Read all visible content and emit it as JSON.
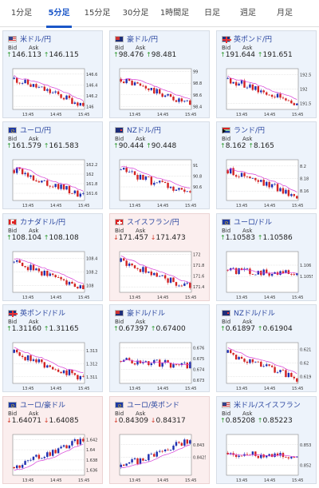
{
  "tabs": [
    {
      "label": "1分足",
      "active": false
    },
    {
      "label": "5分足",
      "active": true
    },
    {
      "label": "15分足",
      "active": false
    },
    {
      "label": "30分足",
      "active": false
    },
    {
      "label": "1時間足",
      "active": false
    },
    {
      "label": "日足",
      "active": false
    },
    {
      "label": "週足",
      "active": false
    },
    {
      "label": "月足",
      "active": false
    }
  ],
  "bid_label": "Bid",
  "ask_label": "Ask",
  "colors": {
    "up_bg": "#edf3fb",
    "down_bg": "#fbeeee",
    "up_arrow": "#2e9a2e",
    "down_arrow": "#d23a2a",
    "ma_line": "#d63cd6",
    "candle_up": "#1e2fb0",
    "candle_down": "#d32222"
  },
  "pairs": [
    {
      "name": "米ドル/円",
      "flag": "us-flag-icon",
      "direction": "up",
      "bid": "146.113",
      "ask": "146.115",
      "chart": {
        "x_ticks": [
          "13:45",
          "14:45",
          "15:45"
        ],
        "y_ticks": [
          "146.6",
          "146.4",
          "146.2",
          "146"
        ],
        "ylim": [
          145.95,
          146.7
        ],
        "trend": "down"
      }
    },
    {
      "name": "豪ドル/円",
      "flag": "au-flag-icon",
      "direction": "up",
      "bid": "98.476",
      "ask": "98.481",
      "chart": {
        "x_ticks": [
          "13:45",
          "14:45",
          "15:45"
        ],
        "y_ticks": [
          "99",
          "98.8",
          "98.6",
          "98.4"
        ],
        "ylim": [
          98.35,
          99.05
        ],
        "trend": "down"
      }
    },
    {
      "name": "英ポンド/円",
      "flag": "gb-flag-icon",
      "direction": "up",
      "bid": "191.644",
      "ask": "191.651",
      "chart": {
        "x_ticks": [
          "13:45",
          "14:45",
          "15:45"
        ],
        "y_ticks": [
          "192.5",
          "192",
          "191.5"
        ],
        "ylim": [
          191.3,
          192.7
        ],
        "trend": "down"
      }
    },
    {
      "name": "ユーロ/円",
      "flag": "eu-flag-icon",
      "direction": "up",
      "bid": "161.579",
      "ask": "161.583",
      "chart": {
        "x_ticks": [
          "13:45",
          "14:45",
          "15:45"
        ],
        "y_ticks": [
          "162.2",
          "162",
          "161.8",
          "161.6"
        ],
        "ylim": [
          161.45,
          162.3
        ],
        "trend": "down"
      }
    },
    {
      "name": "NZドル/円",
      "flag": "nz-flag-icon",
      "direction": "up",
      "bid": "90.444",
      "ask": "90.448",
      "chart": {
        "x_ticks": [
          "13:45",
          "14:45",
          "15:45"
        ],
        "y_ticks": [
          "91",
          "90.8",
          "90.6"
        ],
        "ylim": [
          90.35,
          91.1
        ],
        "trend": "down"
      }
    },
    {
      "name": "ランド/円",
      "flag": "za-flag-icon",
      "direction": "up",
      "bid": "8.162",
      "ask": "8.165",
      "chart": {
        "x_ticks": [
          "13:45",
          "14:45",
          "15:45"
        ],
        "y_ticks": [
          "8.2",
          "8.18",
          "8.16"
        ],
        "ylim": [
          8.145,
          8.21
        ],
        "trend": "down"
      }
    },
    {
      "name": "カナダドル/円",
      "flag": "ca-flag-icon",
      "direction": "up",
      "bid": "108.104",
      "ask": "108.108",
      "chart": {
        "x_ticks": [
          "13:45",
          "14:45",
          "15:45"
        ],
        "y_ticks": [
          "108.4",
          "108.2",
          "108"
        ],
        "ylim": [
          107.9,
          108.5
        ],
        "trend": "down"
      }
    },
    {
      "name": "スイスフラン/円",
      "flag": "ch-flag-icon",
      "direction": "down",
      "bid": "171.457",
      "ask": "171.473",
      "chart": {
        "x_ticks": [
          "13:45",
          "14:45",
          "15:45"
        ],
        "y_ticks": [
          "172",
          "171.8",
          "171.6",
          "171.4"
        ],
        "ylim": [
          171.3,
          172.05
        ],
        "trend": "down"
      }
    },
    {
      "name": "ユーロ/ドル",
      "flag": "eu-flag-icon",
      "direction": "up",
      "bid": "1.10583",
      "ask": "1.10586",
      "chart": {
        "x_ticks": [
          "13:45",
          "14:45",
          "15:45"
        ],
        "y_ticks": [
          "1.106",
          "1.1055"
        ],
        "ylim": [
          1.1048,
          1.1066
        ],
        "trend": "flat"
      }
    },
    {
      "name": "英ポンド/ドル",
      "flag": "gb-flag-icon",
      "direction": "up",
      "bid": "1.31160",
      "ask": "1.31165",
      "chart": {
        "x_ticks": [
          "13:45",
          "14:45",
          "15:45"
        ],
        "y_ticks": [
          "1.313",
          "1.312",
          "1.311"
        ],
        "ylim": [
          1.3105,
          1.3136
        ],
        "trend": "down"
      }
    },
    {
      "name": "豪ドル/ドル",
      "flag": "au-flag-icon",
      "direction": "up",
      "bid": "0.67397",
      "ask": "0.67400",
      "chart": {
        "x_ticks": [
          "13:45",
          "14:45",
          "15:45"
        ],
        "y_ticks": [
          "0.676",
          "0.675",
          "0.674",
          "0.673"
        ],
        "ylim": [
          0.6727,
          0.6765
        ],
        "trend": "flat"
      }
    },
    {
      "name": "NZドル/ドル",
      "flag": "nz-flag-icon",
      "direction": "up",
      "bid": "0.61897",
      "ask": "0.61904",
      "chart": {
        "x_ticks": [
          "13:45",
          "14:45",
          "15:45"
        ],
        "y_ticks": [
          "0.621",
          "0.62",
          "0.619"
        ],
        "ylim": [
          0.6185,
          0.6215
        ],
        "trend": "down"
      }
    },
    {
      "name": "ユーロ/豪ドル",
      "flag": "eu-flag-icon",
      "direction": "down",
      "bid": "1.64071",
      "ask": "1.64085",
      "chart": {
        "x_ticks": [
          "13:45",
          "14:45",
          "15:45"
        ],
        "y_ticks": [
          "1.642",
          "1.64",
          "1.638",
          "1.636"
        ],
        "ylim": [
          1.635,
          1.643
        ],
        "trend": "up"
      }
    },
    {
      "name": "ユーロ/英ポンド",
      "flag": "eu-flag-icon",
      "direction": "down",
      "bid": "0.84309",
      "ask": "0.84317",
      "chart": {
        "x_ticks": [
          "13:45",
          "14:45",
          "15:45"
        ],
        "y_ticks": [
          "0.843",
          "0.8425"
        ],
        "ylim": [
          0.8418,
          0.8434
        ],
        "trend": "up"
      }
    },
    {
      "name": "米ドル/スイスフラン",
      "flag": "us-flag-icon",
      "direction": "up",
      "bid": "0.85208",
      "ask": "0.85223",
      "chart": {
        "x_ticks": [
          "13:45",
          "14:45",
          "15:45"
        ],
        "y_ticks": [
          "0.853",
          "0.852"
        ],
        "ylim": [
          0.8515,
          0.8535
        ],
        "trend": "flat"
      }
    }
  ]
}
